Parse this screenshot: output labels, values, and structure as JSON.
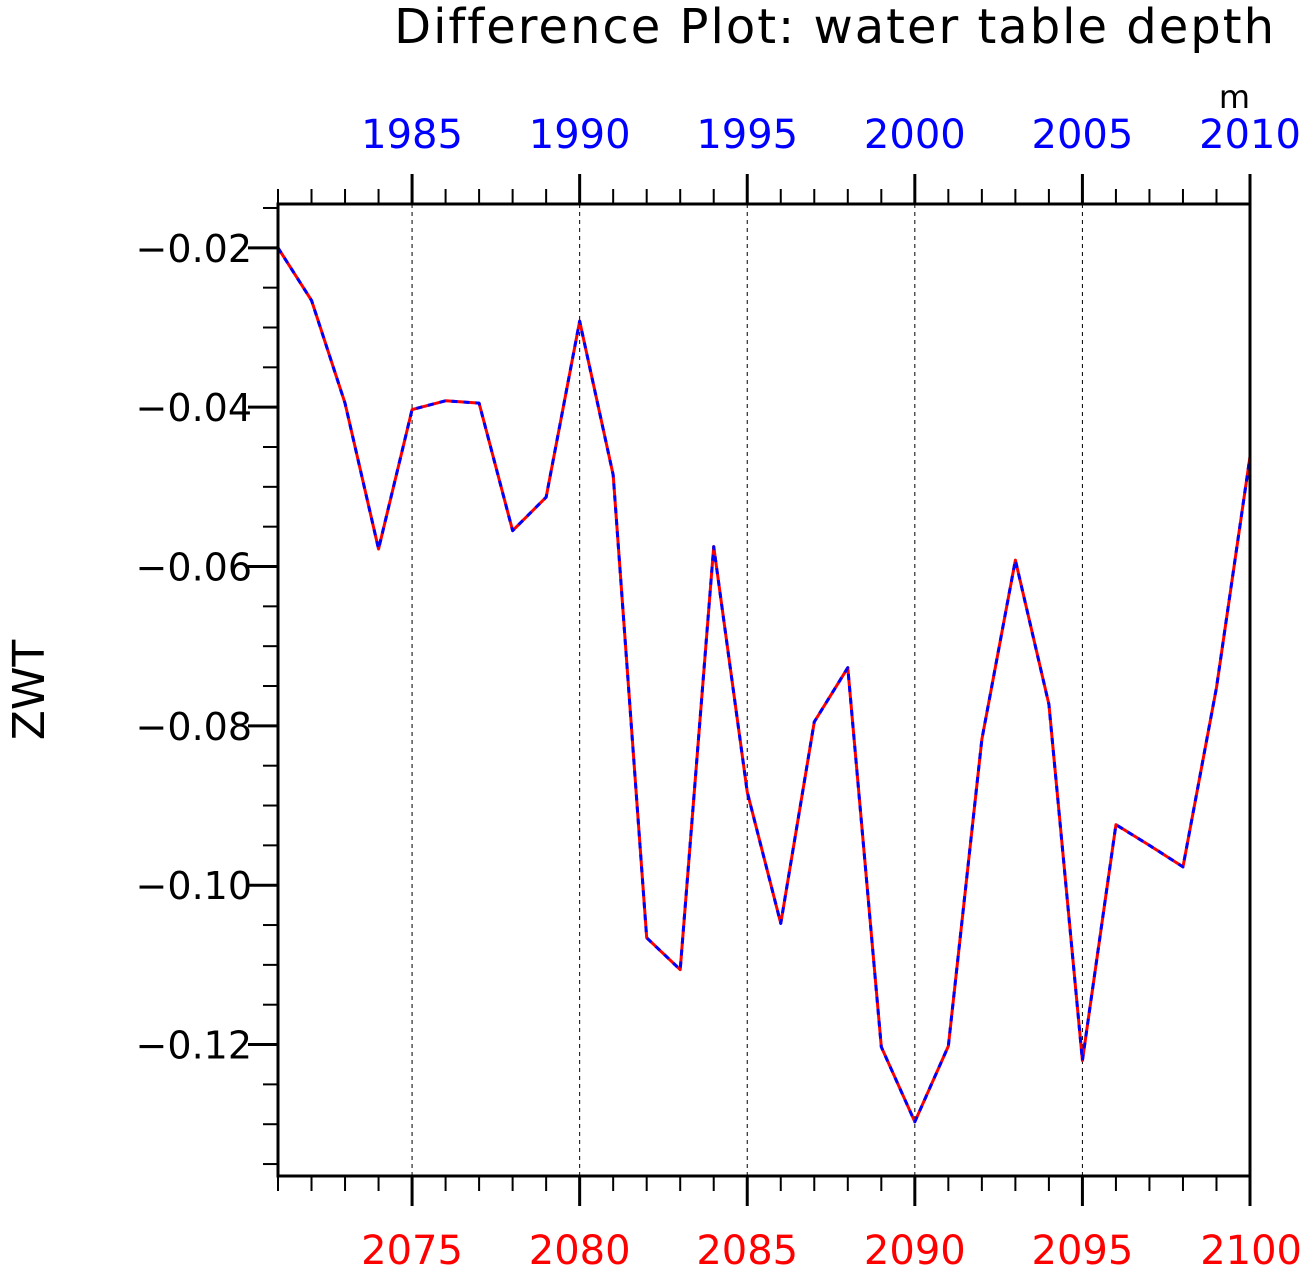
{
  "chart_data": {
    "type": "line",
    "title": "Difference Plot: water table depth",
    "units": "m",
    "ylabel": "ZWT",
    "ylim": [
      -0.1365,
      -0.0145
    ],
    "yticks": [
      -0.02,
      -0.04,
      -0.06,
      -0.08,
      -0.1,
      -0.12
    ],
    "ytick_labels": [
      "−0.02",
      "−0.04",
      "−0.06",
      "−0.08",
      "−0.10",
      "−0.12"
    ],
    "grid": "vertical dashed lines at labeled bottom-axis years",
    "x_top": {
      "range": [
        1981,
        2010
      ],
      "ticks": [
        1985,
        1990,
        1995,
        2000,
        2005,
        2010
      ],
      "tick_labels": [
        "1985",
        "1990",
        "1995",
        "2000",
        "2005",
        "2010"
      ],
      "color": "#0000ff"
    },
    "x_bottom": {
      "range": [
        2071,
        2100
      ],
      "ticks": [
        2075,
        2080,
        2085,
        2090,
        2095,
        2100
      ],
      "tick_labels": [
        "2075",
        "2080",
        "2085",
        "2090",
        "2095",
        "2100"
      ],
      "color": "#ff0000"
    },
    "x": [
      2071,
      2072,
      2073,
      2074,
      2075,
      2076,
      2077,
      2078,
      2079,
      2080,
      2081,
      2082,
      2083,
      2084,
      2085,
      2086,
      2087,
      2088,
      2089,
      2090,
      2091,
      2092,
      2093,
      2094,
      2095,
      2096,
      2097,
      2098,
      2099,
      2100
    ],
    "series": [
      {
        "color_line": "#ff0000",
        "color_dash": "#0000ff",
        "values": [
          -0.02,
          -0.0266,
          -0.0395,
          -0.0578,
          -0.0403,
          -0.0392,
          -0.0395,
          -0.0555,
          -0.0513,
          -0.0292,
          -0.0485,
          -0.1066,
          -0.1106,
          -0.0575,
          -0.0883,
          -0.1048,
          -0.0795,
          -0.0727,
          -0.1203,
          -0.1297,
          -0.1202,
          -0.0817,
          -0.0592,
          -0.0773,
          -0.122,
          -0.0924,
          -0.095,
          -0.0977,
          -0.0752,
          -0.0462
        ]
      }
    ]
  }
}
